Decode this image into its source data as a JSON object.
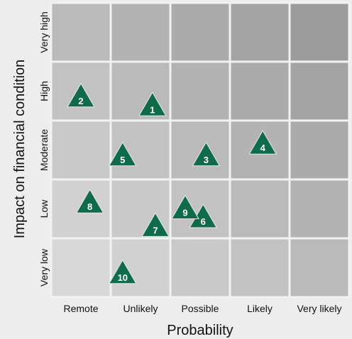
{
  "chart_data": {
    "type": "scatter",
    "title": "",
    "xlabel": "Probability",
    "ylabel": "Impact on financial condition",
    "x_categories": [
      "Remote",
      "Unlikely",
      "Possible",
      "Likely",
      "Very likely"
    ],
    "y_categories": [
      "Very low",
      "Low",
      "Moderate",
      "High",
      "Very high"
    ],
    "grid": true,
    "points": [
      {
        "label": "1",
        "x": 1.7,
        "y": 3.25
      },
      {
        "label": "2",
        "x": 0.5,
        "y": 3.4
      },
      {
        "label": "3",
        "x": 2.6,
        "y": 2.4
      },
      {
        "label": "4",
        "x": 3.55,
        "y": 2.6
      },
      {
        "label": "5",
        "x": 1.2,
        "y": 2.4
      },
      {
        "label": "6",
        "x": 2.55,
        "y": 1.35
      },
      {
        "label": "7",
        "x": 1.75,
        "y": 1.2
      },
      {
        "label": "8",
        "x": 0.65,
        "y": 1.6
      },
      {
        "label": "9",
        "x": 2.25,
        "y": 1.5
      },
      {
        "label": "10",
        "x": 1.2,
        "y": 0.4
      }
    ],
    "colors": {
      "marker": "#0f6b4a",
      "marker_stroke": "#e8e8e8",
      "cell_base": "#d8d8d8",
      "cell_darkest": "#9c9c9c",
      "grid_line": "#f2f2f2",
      "background": "#ededed"
    }
  }
}
